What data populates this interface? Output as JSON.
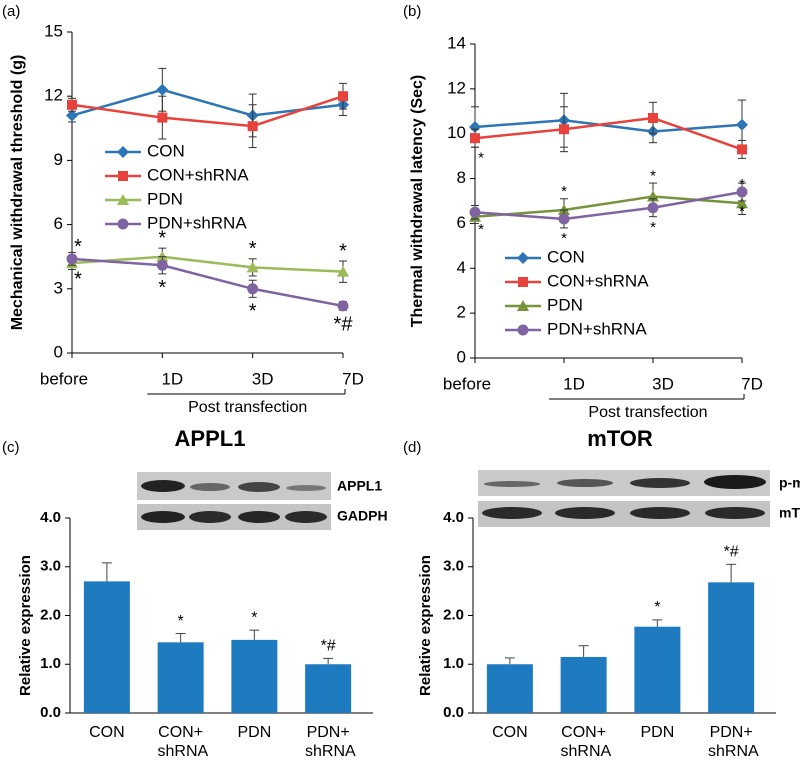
{
  "chart_data": [
    {
      "type": "line",
      "panel_label": "(a)",
      "ylabel": "Mechanical withdrawal threshold  (g)",
      "xlabel": "Post transfection",
      "categories": [
        "before",
        "1D",
        "3D",
        "7D"
      ],
      "ylim": [
        0,
        15
      ],
      "yticks": [
        0,
        3,
        6,
        9,
        12,
        15
      ],
      "legend": "upper center",
      "series": [
        {
          "name": "CON",
          "color": "#2e75b6",
          "marker": "diamond",
          "values": [
            11.1,
            12.3,
            11.1,
            11.6
          ],
          "errors": [
            0.3,
            1.0,
            1.0,
            0.5
          ],
          "annotations": [
            null,
            null,
            null,
            null
          ],
          "annotation_position": "above"
        },
        {
          "name": "CON+shRNA",
          "color": "#e8423c",
          "marker": "square",
          "values": [
            11.6,
            11.0,
            10.6,
            12.0
          ],
          "errors": [
            0.3,
            1.0,
            1.0,
            0.6
          ],
          "annotations": [
            null,
            null,
            null,
            null
          ],
          "annotation_position": "above"
        },
        {
          "name": "PDN",
          "color": "#9bbb59",
          "marker": "triangle",
          "values": [
            4.2,
            4.5,
            4.0,
            3.8
          ],
          "errors": [
            0.3,
            0.4,
            0.4,
            0.5
          ],
          "annotations": [
            "*",
            "*",
            "*",
            "*"
          ],
          "annotation_position": "above"
        },
        {
          "name": "PDN+shRNA",
          "color": "#8064a2",
          "marker": "circle",
          "values": [
            4.4,
            4.1,
            3.0,
            2.2
          ],
          "errors": [
            0.3,
            0.4,
            0.4,
            0.2
          ],
          "annotations": [
            "*",
            "*",
            "*",
            "*#"
          ],
          "annotation_position": "below"
        }
      ]
    },
    {
      "type": "line",
      "panel_label": "(b)",
      "ylabel": "Thermal withdrawal latency (Sec)",
      "xlabel": "Post transfection",
      "categories": [
        "before",
        "1D",
        "3D",
        "7D"
      ],
      "ylim": [
        0,
        14
      ],
      "yticks": [
        0,
        2,
        4,
        6,
        8,
        10,
        12,
        14
      ],
      "legend": "lower right",
      "series": [
        {
          "name": "CON",
          "color": "#2e75b6",
          "marker": "diamond",
          "values": [
            10.3,
            10.6,
            10.1,
            10.4
          ],
          "errors": [
            0.9,
            1.2,
            0.5,
            1.1
          ],
          "annotations": [
            null,
            null,
            null,
            null
          ],
          "annotation_position": "above"
        },
        {
          "name": "CON+shRNA",
          "color": "#e8423c",
          "marker": "square",
          "values": [
            9.8,
            10.2,
            10.7,
            9.3
          ],
          "errors": [
            0.4,
            1.0,
            0.7,
            0.4
          ],
          "annotations": [
            "*",
            null,
            null,
            null
          ],
          "annotation_position": "below"
        },
        {
          "name": "PDN",
          "color": "#77933c",
          "marker": "triangle",
          "values": [
            6.3,
            6.6,
            7.2,
            6.9
          ],
          "errors": [
            0.3,
            0.5,
            0.6,
            0.5
          ],
          "annotations": [
            null,
            "*",
            "*",
            "*"
          ],
          "annotation_position": "above"
        },
        {
          "name": "PDN+shRNA",
          "color": "#8064a2",
          "marker": "circle",
          "values": [
            6.5,
            6.2,
            6.7,
            7.4
          ],
          "errors": [
            0.3,
            0.4,
            0.4,
            0.4
          ],
          "annotations": [
            "*",
            "*",
            "*",
            "*"
          ],
          "annotation_position": "below"
        }
      ]
    },
    {
      "type": "bar",
      "panel_label": "(c)",
      "title": "APPL1",
      "blot_labels": [
        "APPL1",
        "GADPH"
      ],
      "ylabel": "Relative expression",
      "categories": [
        "CON",
        "CON+\nshRNA",
        "PDN",
        "PDN+\nshRNA"
      ],
      "values": [
        2.7,
        1.45,
        1.5,
        1.0
      ],
      "errors": [
        0.38,
        0.18,
        0.2,
        0.12
      ],
      "annotations": [
        null,
        "*",
        "*",
        "*#"
      ],
      "color": "#1f7bc0",
      "ylim": [
        0,
        4
      ],
      "yticks": [
        {
          "value": 0,
          "label": "0.0"
        },
        {
          "value": 1,
          "label": "1.0"
        },
        {
          "value": 2,
          "label": "2.0"
        },
        {
          "value": 3,
          "label": "3.0"
        },
        {
          "value": 4,
          "label": "4.0"
        }
      ]
    },
    {
      "type": "bar",
      "panel_label": "(d)",
      "title": "mTOR",
      "blot_labels": [
        "p-mTOR",
        "mTOR"
      ],
      "ylabel": "Relative expression",
      "categories": [
        "CON",
        "CON+\nshRNA",
        "PDN",
        "PDN+\nshRNA"
      ],
      "values": [
        1.0,
        1.15,
        1.77,
        2.68
      ],
      "errors": [
        0.13,
        0.23,
        0.14,
        0.37
      ],
      "annotations": [
        null,
        null,
        "*",
        "*#"
      ],
      "color": "#1f7bc0",
      "ylim": [
        0,
        4
      ],
      "yticks": [
        {
          "value": 0,
          "label": "0.0"
        },
        {
          "value": 1,
          "label": "1.0"
        },
        {
          "value": 2,
          "label": "2.0"
        },
        {
          "value": 3,
          "label": "3.0"
        },
        {
          "value": 4,
          "label": "4.0"
        }
      ]
    }
  ]
}
